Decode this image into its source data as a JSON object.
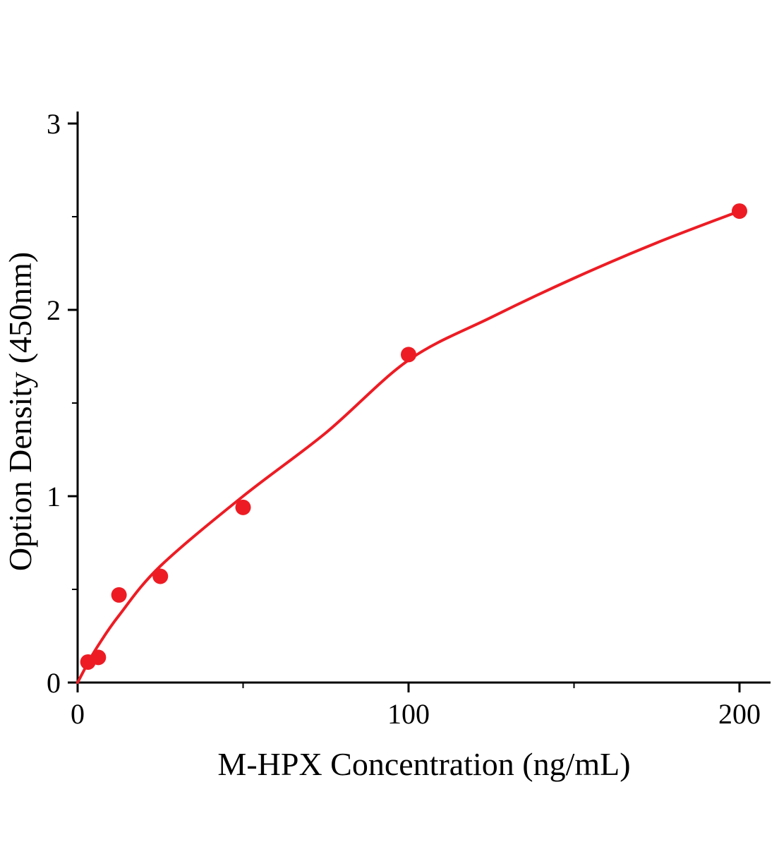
{
  "figure": {
    "background": "#ffffff",
    "accent_color": "#ed1c24",
    "axis_color": "#000000"
  },
  "chart_data": {
    "type": "scatter",
    "title": "",
    "xlabel": "M-HPX Concentration（ng/mL）",
    "ylabel": "Option Density（450nm）",
    "xlim": [
      0,
      200
    ],
    "ylim": [
      0,
      3
    ],
    "x_ticks": [
      0,
      100,
      200
    ],
    "x_tick_labels": [
      "0",
      "100",
      "200"
    ],
    "x_minor_ticks": [
      50,
      150
    ],
    "y_ticks": [
      0,
      1,
      2,
      3
    ],
    "y_tick_labels": [
      "0",
      "1",
      "2",
      "3"
    ],
    "y_minor_ticks": [
      0.5,
      1.5,
      2.5
    ],
    "grid": false,
    "legend": false,
    "series": [
      {
        "name": "standard-points",
        "type": "scatter",
        "color": "#ed1c24",
        "marker": "circle",
        "marker_radius": 11,
        "points": [
          [
            3.125,
            0.11
          ],
          [
            6.25,
            0.135
          ],
          [
            12.5,
            0.47
          ],
          [
            25,
            0.57
          ],
          [
            50,
            0.94
          ],
          [
            100,
            1.76
          ],
          [
            200,
            2.53
          ]
        ]
      },
      {
        "name": "fit-curve",
        "type": "line",
        "color": "#ed1c24",
        "stroke_width": 4,
        "points": [
          [
            0,
            0.0
          ],
          [
            3.125,
            0.105
          ],
          [
            6.25,
            0.2
          ],
          [
            12.5,
            0.36
          ],
          [
            25,
            0.625
          ],
          [
            50,
            1.0
          ],
          [
            75,
            1.34
          ],
          [
            100,
            1.73
          ],
          [
            125,
            1.96
          ],
          [
            150,
            2.17
          ],
          [
            175,
            2.36
          ],
          [
            200,
            2.53
          ]
        ]
      }
    ]
  }
}
